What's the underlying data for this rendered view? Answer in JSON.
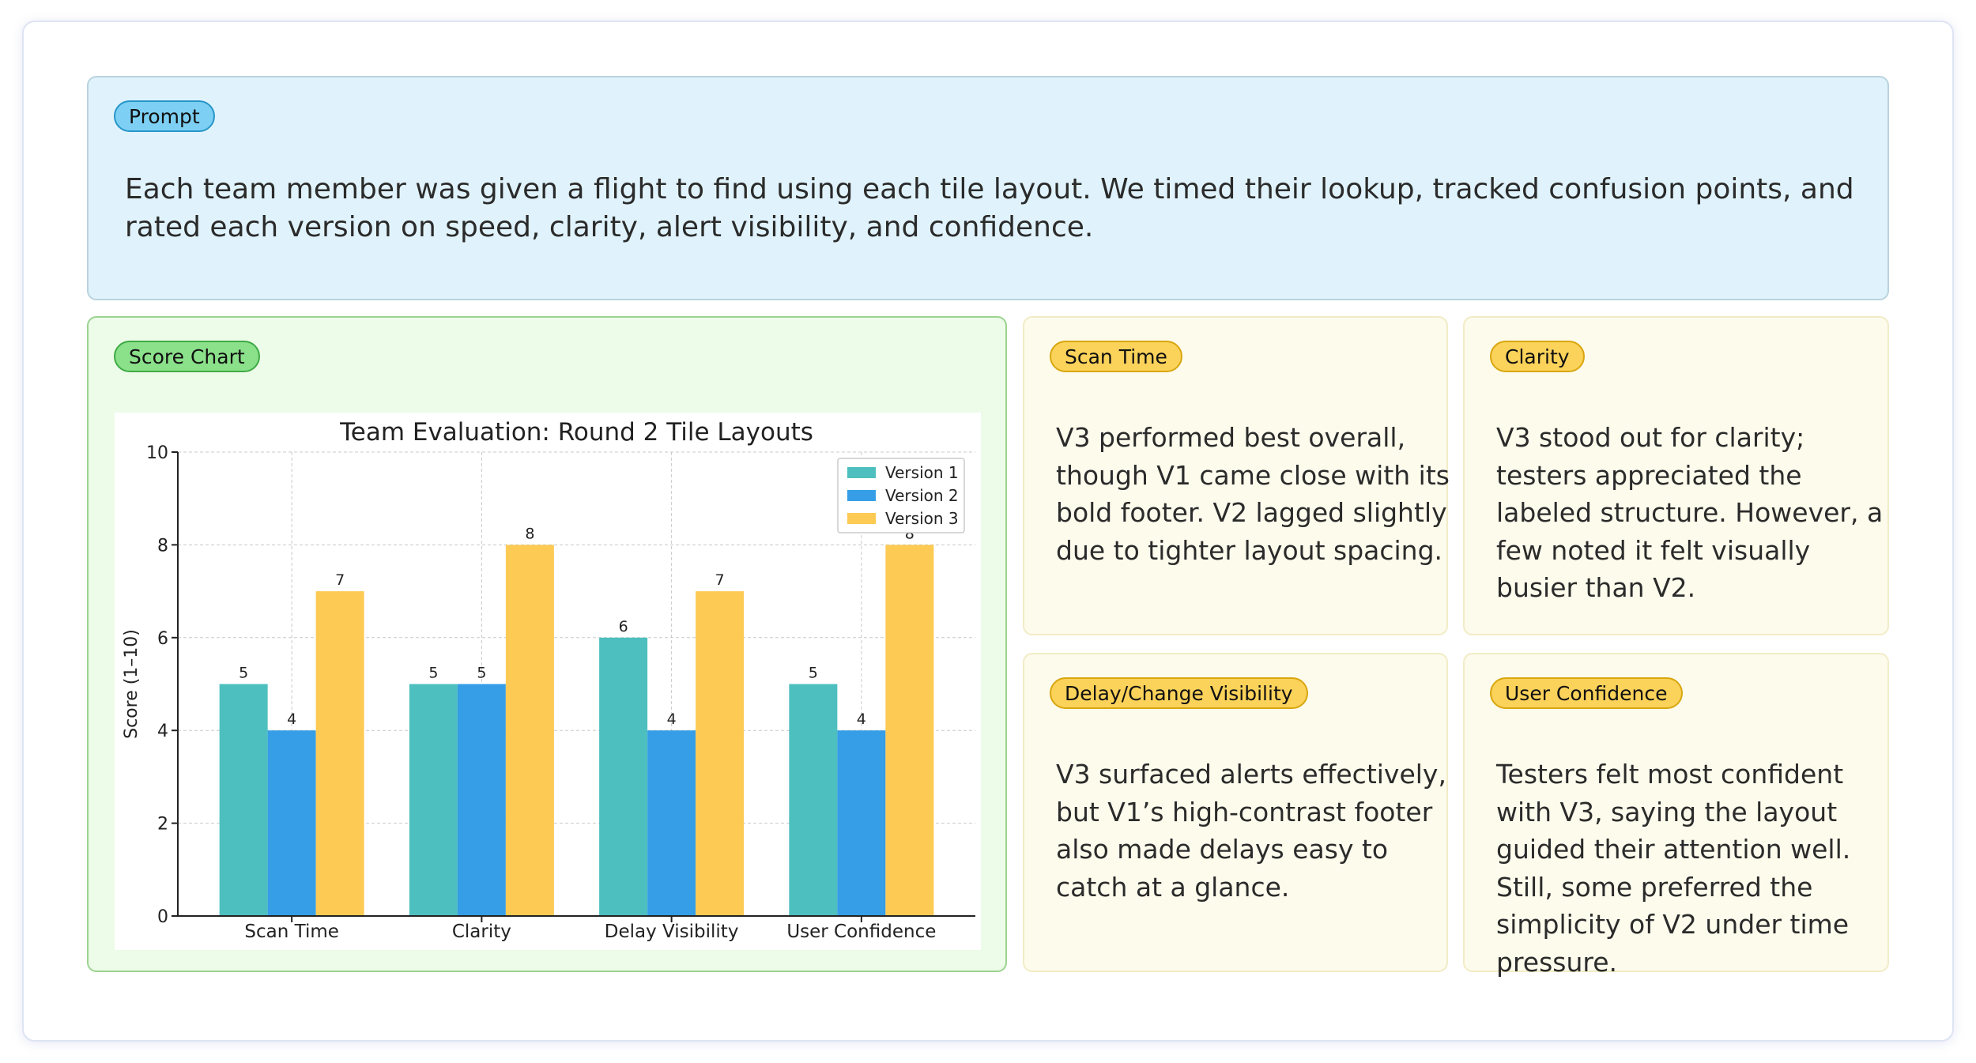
{
  "prompt": {
    "label": "Prompt",
    "text": "Each team member was given a flight to find using each tile layout. We timed their lookup, tracked confusion points, and rated each version on speed, clarity, alert visibility, and confidence."
  },
  "score_chart": {
    "label": "Score Chart"
  },
  "notes": [
    {
      "label": "Scan Time",
      "text": "V3 performed best overall, though V1 came close with its bold footer. V2 lagged slightly due to tighter layout spacing."
    },
    {
      "label": "Clarity",
      "text": "V3 stood out for clarity; testers appreciated the labeled structure. However, a few noted it felt visually busier than V2."
    },
    {
      "label": "Delay/Change Visibility",
      "text": "V3 surfaced alerts effectively, but V1’s high-contrast footer also made delays easy to catch at a glance."
    },
    {
      "label": "User Confidence",
      "text": "Testers felt most confident with V3, saying the layout guided their attention well. Still, some preferred the simplicity of V2 under time pressure."
    }
  ],
  "chart_data": {
    "type": "bar",
    "title": "Team Evaluation: Round 2 Tile Layouts",
    "xlabel": "",
    "ylabel": "Score (1–10)",
    "ylim": [
      0,
      10
    ],
    "yticks": [
      0,
      2,
      4,
      6,
      8,
      10
    ],
    "grid": true,
    "legend": "top-right",
    "categories": [
      "Scan Time",
      "Clarity",
      "Delay Visibility",
      "User Confidence"
    ],
    "series": [
      {
        "name": "Version 1",
        "color": "#4dbfbf",
        "values": [
          5,
          5,
          6,
          5
        ]
      },
      {
        "name": "Version 2",
        "color": "#369ee6",
        "values": [
          4,
          5,
          4,
          4
        ]
      },
      {
        "name": "Version 3",
        "color": "#fdca54",
        "values": [
          7,
          8,
          7,
          8
        ]
      }
    ]
  }
}
